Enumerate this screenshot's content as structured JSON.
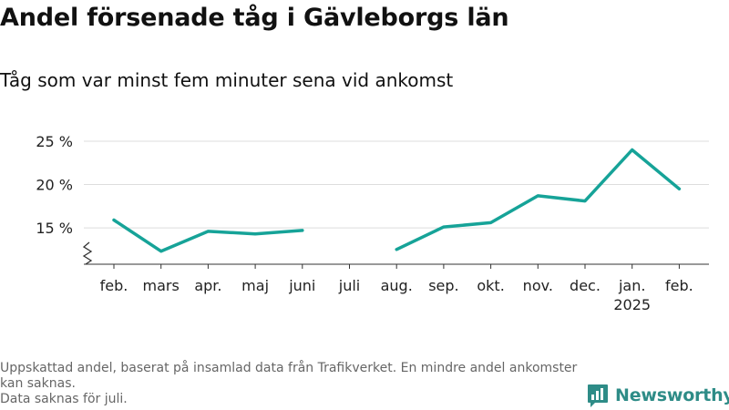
{
  "chart_data": {
    "type": "line",
    "title": "Andel försenade tåg i Gävleborgs län",
    "subtitle": "Tåg som var minst fem minuter sena vid ankomst",
    "categories": [
      "feb.",
      "mars",
      "apr.",
      "maj",
      "juni",
      "juli",
      "aug.",
      "sep.",
      "okt.",
      "nov.",
      "dec.",
      "jan.",
      "feb."
    ],
    "category_sublabels": [
      "",
      "",
      "",
      "",
      "",
      "",
      "",
      "",
      "",
      "",
      "",
      "2025",
      ""
    ],
    "series": [
      {
        "values": [
          15.9,
          12.3,
          14.6,
          14.3,
          14.7,
          null,
          12.5,
          15.1,
          15.6,
          18.7,
          18.1,
          24.0,
          19.5
        ]
      }
    ],
    "y_ticks": [
      {
        "value": 15,
        "label": "15 %"
      },
      {
        "value": 20,
        "label": "20 %"
      },
      {
        "value": 25,
        "label": "25 %"
      }
    ],
    "ylim": [
      10.8,
      25
    ],
    "y_axis_break": true,
    "line_color": "#16a398",
    "grid": true
  },
  "footer": {
    "note_line1": "Uppskattad andel, baserat på insamlad data från Trafikverket. En mindre andel ankomster kan saknas.",
    "note_line2": "Data saknas för juli."
  },
  "brand": {
    "name": "Newsworthy",
    "color": "#2e8c87",
    "icon": "newsworthy-logo-icon"
  }
}
